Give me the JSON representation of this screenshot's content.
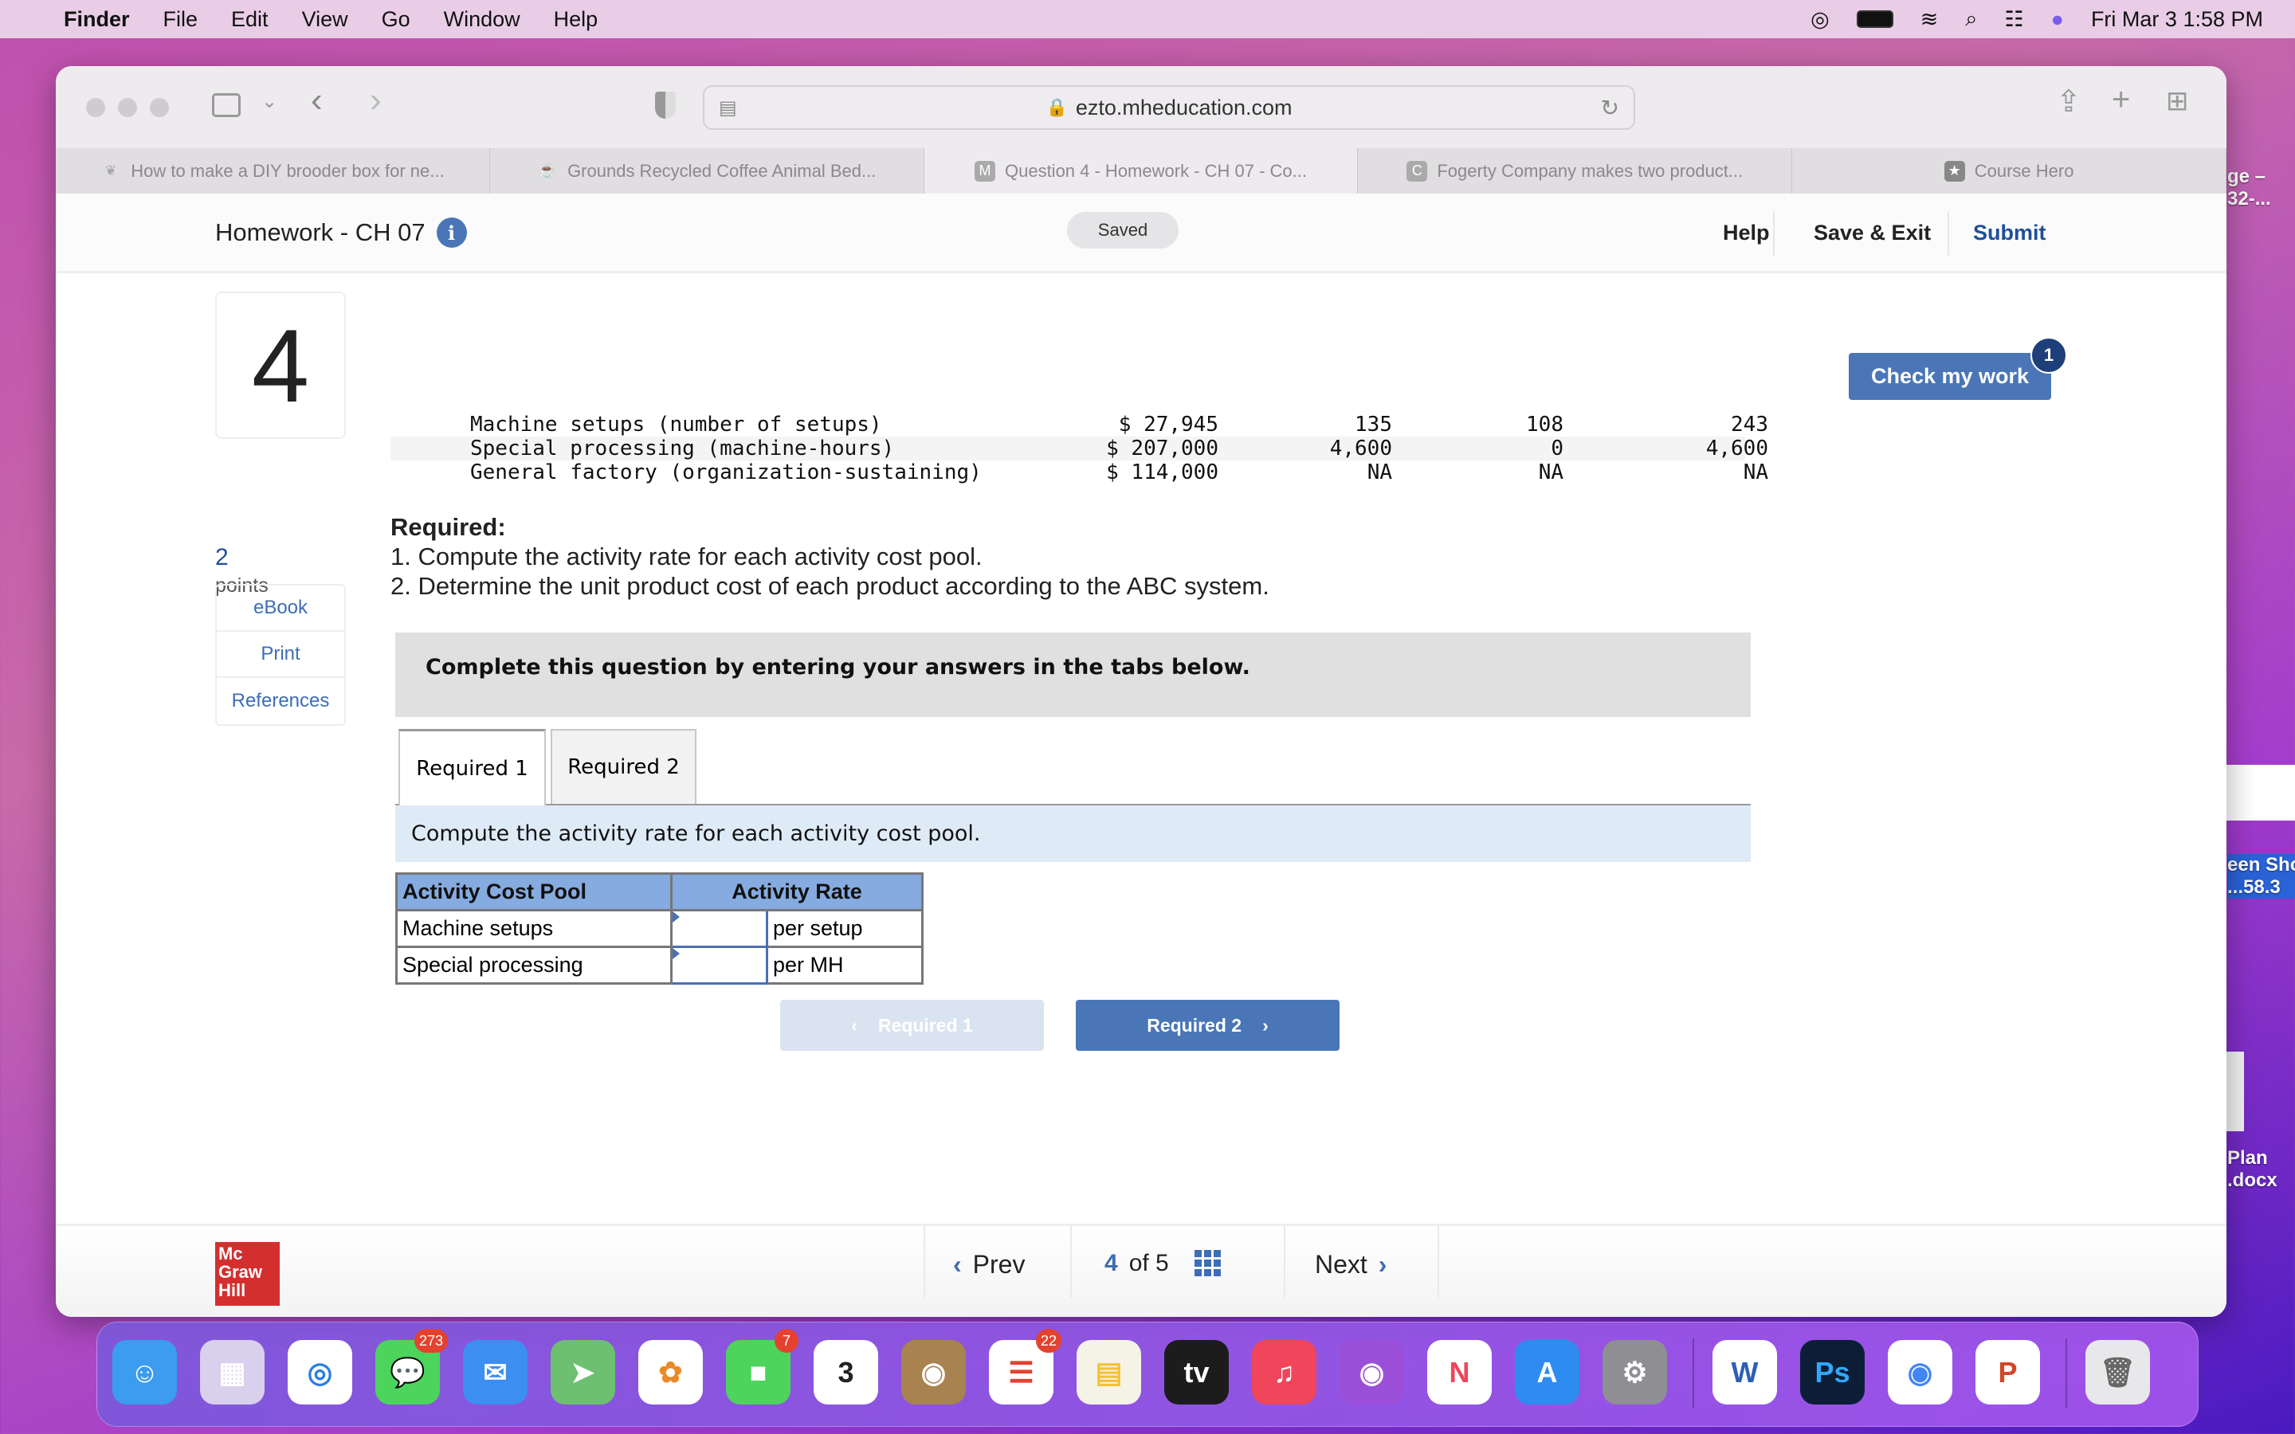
{
  "menubar": {
    "app": "Finder",
    "items": [
      "File",
      "Edit",
      "View",
      "Go",
      "Window",
      "Help"
    ],
    "clock": "Fri Mar 3  1:58 PM"
  },
  "browser": {
    "url": "ezto.mheducation.com",
    "tabs": [
      {
        "label": "How to make a DIY brooder box for ne...",
        "active": false
      },
      {
        "label": "Grounds Recycled Coffee Animal Bed...",
        "active": false
      },
      {
        "label": "Question 4 - Homework - CH 07 - Co...",
        "active": true,
        "fav": "M"
      },
      {
        "label": "Fogerty Company makes two product...",
        "active": false,
        "fav": "C"
      },
      {
        "label": "Course Hero",
        "active": false,
        "fav": "★"
      }
    ]
  },
  "header": {
    "title": "Homework - CH 07",
    "saved": "Saved",
    "help": "Help",
    "save_exit": "Save & Exit",
    "submit": "Submit"
  },
  "question": {
    "number": "4",
    "points": "2",
    "points_label": "points",
    "check": "Check my work",
    "check_badge": "1",
    "side": [
      "eBook",
      "Print",
      "References"
    ],
    "data_rows": [
      [
        "Machine setups (number of setups)",
        "$ 27,945",
        "135",
        "108",
        "243"
      ],
      [
        "Special processing (machine-hours)",
        "$ 207,000",
        "4,600",
        "0",
        "4,600"
      ],
      [
        "General factory (organization-sustaining)",
        "$ 114,000",
        "NA",
        "NA",
        "NA"
      ]
    ],
    "required_title": "Required:",
    "required": [
      "1. Compute the activity rate for each activity cost pool.",
      "2. Determine the unit product cost of each product according to the ABC system."
    ],
    "instruction_box": "Complete this question by entering your answers in the tabs below.",
    "tabs": [
      "Required 1",
      "Required 2"
    ],
    "tab_instruction": "Compute the activity rate for each activity cost pool.",
    "table": {
      "headers": [
        "Activity Cost Pool",
        "Activity Rate"
      ],
      "rows": [
        {
          "pool": "Machine setups",
          "value": "",
          "unit": "per setup"
        },
        {
          "pool": "Special processing",
          "value": "",
          "unit": "per MH"
        }
      ]
    },
    "prev_btn": "Required 1",
    "next_btn": "Required 2"
  },
  "footer": {
    "logo": "Mc Graw Hill",
    "prev": "Prev",
    "current": "4",
    "of": "of 5",
    "next": "Next"
  },
  "desktop": {
    "items": [
      "ge –\n32-...",
      "een Sho\n...58.3",
      "Plan\n.docx"
    ]
  },
  "dock": [
    {
      "name": "finder",
      "bg": "#3b9cf0",
      "glyph": "☺"
    },
    {
      "name": "launchpad",
      "bg": "#d8d0ec",
      "glyph": "▦"
    },
    {
      "name": "safari",
      "bg": "#fff",
      "glyph": "◎",
      "fg": "#2a7de1"
    },
    {
      "name": "messages",
      "bg": "#4cd45c",
      "glyph": "💬",
      "badge": "273"
    },
    {
      "name": "mail",
      "bg": "#3c8ef0",
      "glyph": "✉"
    },
    {
      "name": "maps",
      "bg": "#6cc070",
      "glyph": "➤"
    },
    {
      "name": "photos",
      "bg": "#fff",
      "glyph": "✿",
      "fg": "#e98a2a"
    },
    {
      "name": "facetime",
      "bg": "#4cd45c",
      "glyph": "■",
      "badge": "7"
    },
    {
      "name": "calendar",
      "bg": "#fff",
      "glyph": "3",
      "fg": "#222"
    },
    {
      "name": "contacts",
      "bg": "#a8834f",
      "glyph": "◉"
    },
    {
      "name": "reminders",
      "bg": "#fff",
      "glyph": "☰",
      "fg": "#e5412f",
      "badge": "22"
    },
    {
      "name": "notes",
      "bg": "#f5f2e6",
      "glyph": "▤",
      "fg": "#f3c13a"
    },
    {
      "name": "tv",
      "bg": "#1c1c1c",
      "glyph": "tv"
    },
    {
      "name": "music",
      "bg": "#f0455a",
      "glyph": "♫"
    },
    {
      "name": "podcasts",
      "bg": "#9b4fd8",
      "glyph": "◉"
    },
    {
      "name": "news",
      "bg": "#fff",
      "glyph": "N",
      "fg": "#f0455a"
    },
    {
      "name": "app-store",
      "bg": "#2e8cf0",
      "glyph": "A"
    },
    {
      "name": "system-preferences",
      "bg": "#8e8e93",
      "glyph": "⚙"
    },
    {
      "name": "word",
      "bg": "#fff",
      "glyph": "W",
      "fg": "#2b5fb8"
    },
    {
      "name": "photoshop",
      "bg": "#0c1e36",
      "glyph": "Ps",
      "fg": "#31a8ff"
    },
    {
      "name": "chrome",
      "bg": "#fff",
      "glyph": "◉",
      "fg": "#4285f4"
    },
    {
      "name": "powerpoint",
      "bg": "#fff",
      "glyph": "P",
      "fg": "#d24726"
    },
    {
      "name": "trash",
      "bg": "#e8e8ea",
      "glyph": "🗑",
      "fg": "#666"
    }
  ]
}
